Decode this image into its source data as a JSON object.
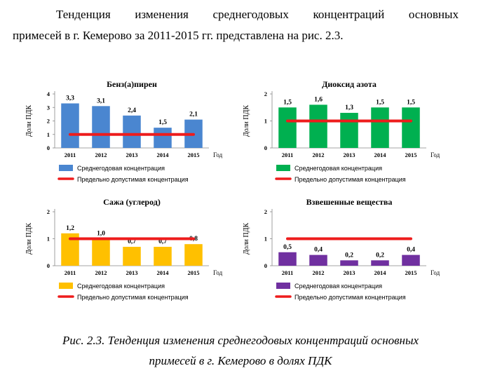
{
  "intro": {
    "line1": [
      "Тенденция",
      "изменения",
      "среднегодовых",
      "концентраций",
      "основных"
    ],
    "line2": "примесей в г. Кемерово за 2011-2015 гг. представлена на рис. 2.3."
  },
  "caption": {
    "line1": "Рис. 2.3. Тенденция изменения среднегодовых концентраций основных",
    "line2": "примесей в г. Кемерово в долях ПДК"
  },
  "chart_data": [
    {
      "type": "bar",
      "title": "Бенз(а)пирен",
      "categories": [
        "2011",
        "2012",
        "2013",
        "2014",
        "2015"
      ],
      "xlabel": "Год",
      "ylabel": "Доли ПДК",
      "ylim": [
        0,
        4
      ],
      "yticks": [
        "0",
        "1",
        "2",
        "3",
        "4"
      ],
      "series": [
        {
          "name": "Среднегодовая концентрация",
          "values": [
            3.3,
            3.1,
            2.4,
            1.5,
            2.1
          ],
          "labels": [
            "3,3",
            "3,1",
            "2,4",
            "1,5",
            "2,1"
          ],
          "color": "#4a86d0"
        },
        {
          "name": "Предельно допустимая концентрация",
          "values": [
            1,
            1,
            1,
            1,
            1
          ],
          "color": "#ee1c1c"
        }
      ],
      "legend": "bottom"
    },
    {
      "type": "bar",
      "title": "Диоксид азота",
      "categories": [
        "2011",
        "2012",
        "2013",
        "2014",
        "2015"
      ],
      "xlabel": "Год",
      "ylabel": "Доли ПДК",
      "ylim": [
        0,
        2
      ],
      "yticks": [
        "0",
        "1",
        "2"
      ],
      "series": [
        {
          "name": "Среднегодовая концентрация",
          "values": [
            1.5,
            1.6,
            1.3,
            1.5,
            1.5
          ],
          "labels": [
            "1,5",
            "1,6",
            "1,3",
            "1,5",
            "1,5"
          ],
          "color": "#00b050"
        },
        {
          "name": "Предельно допустимая концентрация",
          "values": [
            1,
            1,
            1,
            1,
            1
          ],
          "color": "#ee1c1c"
        }
      ],
      "legend": "bottom"
    },
    {
      "type": "bar",
      "title": "Сажа (углерод)",
      "categories": [
        "2011",
        "2012",
        "2013",
        "2014",
        "2015"
      ],
      "xlabel": "Год",
      "ylabel": "Доли ПДК",
      "ylim": [
        0,
        2
      ],
      "yticks": [
        "0",
        "1",
        "2"
      ],
      "series": [
        {
          "name": "Среднегодовая концентрация",
          "values": [
            1.2,
            1.0,
            0.7,
            0.7,
            0.8
          ],
          "labels": [
            "1,2",
            "1,0",
            "0,7",
            "0,7",
            "0,8"
          ],
          "color": "#ffc000"
        },
        {
          "name": "Предельно допустимая концентрация",
          "values": [
            1,
            1,
            1,
            1,
            1
          ],
          "color": "#ee1c1c"
        }
      ],
      "legend": "bottom"
    },
    {
      "type": "bar",
      "title": "Взвешенные вещества",
      "categories": [
        "2011",
        "2012",
        "2013",
        "2014",
        "2015"
      ],
      "xlabel": "Год",
      "ylabel": "Доли ПДК",
      "ylim": [
        0,
        2
      ],
      "yticks": [
        "0",
        "1",
        "2"
      ],
      "series": [
        {
          "name": "Среднегодовая концентрация",
          "values": [
            0.5,
            0.4,
            0.2,
            0.2,
            0.4
          ],
          "labels": [
            "0,5",
            "0,4",
            "0,2",
            "0,2",
            "0,4"
          ],
          "color": "#7030a0"
        },
        {
          "name": "Предельно допустимая концентрация",
          "values": [
            1,
            1,
            1,
            1,
            1
          ],
          "color": "#ee1c1c"
        }
      ],
      "legend": "bottom"
    }
  ]
}
